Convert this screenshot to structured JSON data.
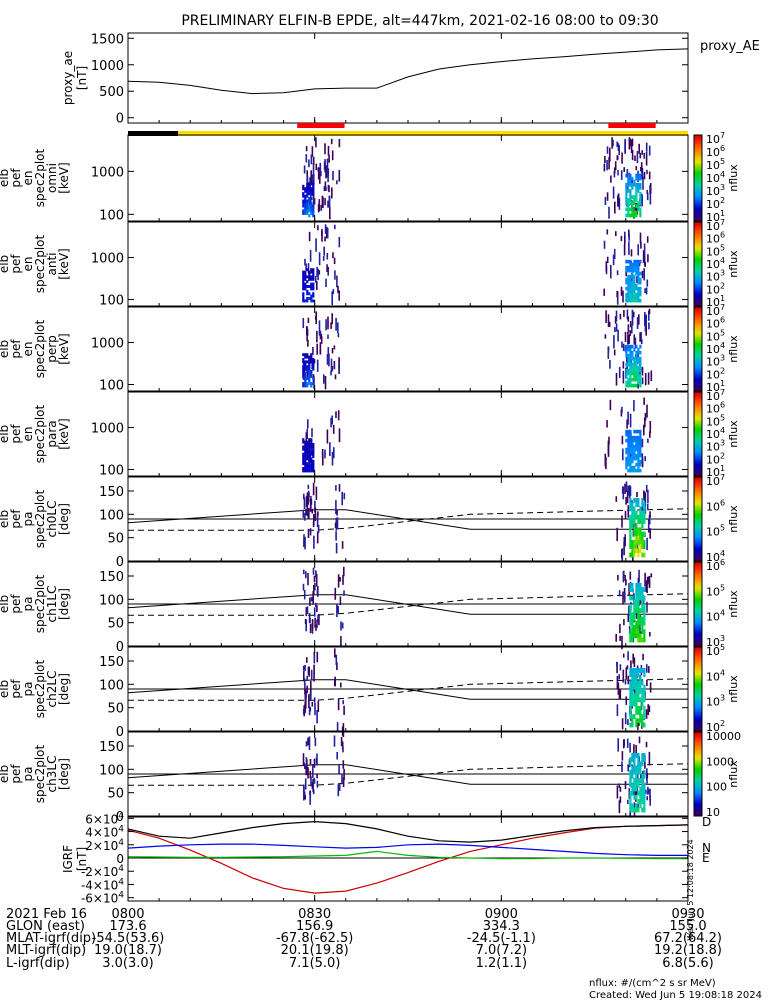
{
  "title": "PRELIMINARY ELFIN-B EPDE, alt=447km, 2021-02-16 08:00 to 09:30",
  "time_ticks": [
    "0800",
    "0830",
    "0900",
    "0930"
  ],
  "colors": {
    "science_bar": "#ff0000",
    "status_black": "#000000",
    "status_yellow": "#ffdd00"
  },
  "panels": [
    {
      "ylabel_lines": [
        "proxy_ae",
        "[nT]"
      ],
      "yticks": [
        "0",
        "500",
        "1000",
        "1500"
      ],
      "legend": "proxy_AE"
    },
    {
      "ylabel_lines": [
        "elb",
        "pef",
        "en",
        "spec2plot",
        "omni",
        "[keV]"
      ],
      "yticks": [
        "100",
        "1000"
      ],
      "cbar_ticks": [
        "10^1",
        "10^2",
        "10^3",
        "10^4",
        "10^5",
        "10^6",
        "10^7"
      ],
      "cbar_label": "nflux"
    },
    {
      "ylabel_lines": [
        "elb",
        "pef",
        "en",
        "spec2plot",
        "anti",
        "[keV]"
      ],
      "yticks": [
        "100",
        "1000"
      ],
      "cbar_ticks": [
        "10^1",
        "10^2",
        "10^3",
        "10^4",
        "10^5",
        "10^6",
        "10^7"
      ],
      "cbar_label": "nflux"
    },
    {
      "ylabel_lines": [
        "elb",
        "pef",
        "en",
        "spec2plot",
        "perp",
        "[keV]"
      ],
      "yticks": [
        "100",
        "1000"
      ],
      "cbar_ticks": [
        "10^1",
        "10^2",
        "10^3",
        "10^4",
        "10^5",
        "10^6",
        "10^7"
      ],
      "cbar_label": "nflux"
    },
    {
      "ylabel_lines": [
        "elb",
        "pef",
        "en",
        "spec2plot",
        "para",
        "[keV]"
      ],
      "yticks": [
        "100",
        "1000"
      ],
      "cbar_ticks": [
        "10^1",
        "10^2",
        "10^3",
        "10^4",
        "10^5",
        "10^6",
        "10^7"
      ],
      "cbar_label": "nflux"
    },
    {
      "ylabel_lines": [
        "elb",
        "pef",
        "pa",
        "spec2plot",
        "ch0LC",
        "[deg]"
      ],
      "yticks": [
        "0",
        "50",
        "100",
        "150"
      ],
      "cbar_ticks": [
        "10^4",
        "10^5",
        "10^6",
        "10^7"
      ],
      "cbar_label": "nflux"
    },
    {
      "ylabel_lines": [
        "elb",
        "pef",
        "pa",
        "spec2plot",
        "ch1LC",
        "[deg]"
      ],
      "yticks": [
        "0",
        "50",
        "100",
        "150"
      ],
      "cbar_ticks": [
        "10^3",
        "10^4",
        "10^5",
        "10^6"
      ],
      "cbar_label": "nflux"
    },
    {
      "ylabel_lines": [
        "elb",
        "pef",
        "pa",
        "spec2plot",
        "ch2LC",
        "[deg]"
      ],
      "yticks": [
        "0",
        "50",
        "100",
        "150"
      ],
      "cbar_ticks": [
        "10^2",
        "10^3",
        "10^4",
        "10^5"
      ],
      "cbar_label": "nflux"
    },
    {
      "ylabel_lines": [
        "elb",
        "pef",
        "pa",
        "spec2plot",
        "ch3LC",
        "[deg]"
      ],
      "yticks": [
        "0",
        "50",
        "100",
        "150"
      ],
      "cbar_ticks": [
        "10",
        "100",
        "1000",
        "10000"
      ],
      "cbar_label": "nflux"
    },
    {
      "ylabel_lines": [
        "IGRF",
        "[nT]"
      ],
      "yticks": [
        "-6×10^4",
        "-4×10^4",
        "-2×10^4",
        "0",
        "2×10^4",
        "4×10^4",
        "6×10^4"
      ],
      "legend": [
        "D",
        "N",
        "E"
      ],
      "side_stamp": "Wed Jun  5 12:08:18 2024"
    }
  ],
  "footer": {
    "labels": [
      "2021 Feb 16",
      "GLON (east)",
      "MLAT-igrf(dip)",
      "MLT-igrf(dip)",
      "L-igrf(dip)"
    ],
    "columns": [
      [
        "0800",
        "173.6",
        "-54.5(53.6)",
        "19.0(18.7)",
        "3.0(3.0)"
      ],
      [
        "0830",
        "156.9",
        "-67.8(-62.5)",
        "20.1(19.8)",
        "7.1(5.0)"
      ],
      [
        "0900",
        "334.3",
        "-24.5(-1.1)",
        "7.0(7.2)",
        "1.2(1.1)"
      ],
      [
        "0930",
        "155.0",
        "67.2(64.2)",
        "19.2(18.8)",
        "6.8(5.6)"
      ]
    ],
    "units_note": "nflux: #/(cm^2 s sr MeV)",
    "created": "Created: Wed Jun  5 19:08:18 2024"
  },
  "chart_data": [
    {
      "type": "line",
      "title": "proxy_AE",
      "ylabel": "proxy_ae [nT]",
      "ylim": [
        -100,
        1600
      ],
      "x": [
        "08:00",
        "08:05",
        "08:10",
        "08:15",
        "08:20",
        "08:25",
        "08:30",
        "08:35",
        "08:40",
        "08:45",
        "08:50",
        "08:55",
        "09:00",
        "09:05",
        "09:10",
        "09:15",
        "09:20",
        "09:25",
        "09:30"
      ],
      "values": [
        690,
        670,
        610,
        520,
        455,
        470,
        545,
        560,
        560,
        770,
        920,
        1000,
        1060,
        1110,
        1150,
        1200,
        1240,
        1280,
        1300
      ]
    },
    {
      "type": "heatmap",
      "title": "elb pef en spec2plot omni [keV]",
      "ylabel": "[keV]",
      "yscale": "log",
      "zscale": "log",
      "zlim": [
        "10^1",
        "10^7"
      ],
      "intervals": [
        [
          "08:28",
          "08:34"
        ],
        [
          "09:18",
          "09:24"
        ]
      ]
    },
    {
      "type": "heatmap",
      "title": "elb pef en spec2plot anti [keV]",
      "ylabel": "[keV]",
      "yscale": "log",
      "zscale": "log",
      "zlim": [
        "10^1",
        "10^7"
      ],
      "intervals": [
        [
          "08:28",
          "08:34"
        ],
        [
          "09:18",
          "09:24"
        ]
      ]
    },
    {
      "type": "heatmap",
      "title": "elb pef en spec2plot perp [keV]",
      "ylabel": "[keV]",
      "yscale": "log",
      "zscale": "log",
      "zlim": [
        "10^1",
        "10^7"
      ],
      "intervals": [
        [
          "08:28",
          "08:34"
        ],
        [
          "09:18",
          "09:24"
        ]
      ]
    },
    {
      "type": "heatmap",
      "title": "elb pef en spec2plot para [keV]",
      "ylabel": "[keV]",
      "yscale": "log",
      "zscale": "log",
      "zlim": [
        "10^1",
        "10^7"
      ],
      "intervals": [
        [
          "08:28",
          "08:34"
        ],
        [
          "09:18",
          "09:24"
        ]
      ]
    },
    {
      "type": "heatmap",
      "title": "elb pef pa spec2plot ch0LC [deg]",
      "ylabel": "[deg]",
      "ylim": [
        0,
        180
      ],
      "reference_lines": [
        90
      ],
      "losscone_solid_times": [
        "08:00",
        "08:30",
        "08:35",
        "08:55",
        "09:30"
      ],
      "losscone_solid_deg": [
        82,
        110,
        110,
        68,
        68
      ],
      "losscone_dashed_deg": [
        66,
        66,
        70,
        100,
        112
      ]
    },
    {
      "type": "heatmap",
      "title": "elb pef pa spec2plot ch1LC [deg]",
      "ylabel": "[deg]",
      "ylim": [
        0,
        180
      ],
      "reference_lines": [
        90
      ],
      "losscone_solid_deg": [
        82,
        110,
        110,
        68,
        68
      ],
      "losscone_dashed_deg": [
        66,
        66,
        70,
        100,
        112
      ]
    },
    {
      "type": "heatmap",
      "title": "elb pef pa spec2plot ch2LC [deg]",
      "ylabel": "[deg]",
      "ylim": [
        0,
        180
      ],
      "reference_lines": [
        90
      ],
      "losscone_solid_deg": [
        82,
        110,
        110,
        68,
        68
      ],
      "losscone_dashed_deg": [
        66,
        66,
        70,
        100,
        112
      ]
    },
    {
      "type": "heatmap",
      "title": "elb pef pa spec2plot ch3LC [deg]",
      "ylabel": "[deg]",
      "ylim": [
        0,
        180
      ],
      "reference_lines": [
        90
      ],
      "losscone_solid_deg": [
        82,
        110,
        110,
        68,
        68
      ],
      "losscone_dashed_deg": [
        66,
        66,
        70,
        100,
        112
      ]
    },
    {
      "type": "line",
      "title": "IGRF",
      "ylabel": "IGRF [nT]",
      "ylim": [
        -65000,
        62000
      ],
      "x": [
        "08:00",
        "08:05",
        "08:10",
        "08:15",
        "08:20",
        "08:25",
        "08:30",
        "08:35",
        "08:40",
        "08:45",
        "08:50",
        "08:55",
        "09:00",
        "09:05",
        "09:10",
        "09:15",
        "09:20",
        "09:25",
        "09:30"
      ],
      "series": [
        {
          "name": "D",
          "color": "#cc0000",
          "values": [
            42000,
            30000,
            12000,
            -8000,
            -30000,
            -46000,
            -53000,
            -50000,
            -38000,
            -22000,
            -5000,
            10000,
            20000,
            30000,
            38000,
            45000,
            48000,
            49000,
            50000
          ]
        },
        {
          "name": "N",
          "color": "#0000ee",
          "values": [
            15000,
            18000,
            20000,
            21000,
            21000,
            19000,
            17000,
            15000,
            16000,
            20000,
            21000,
            19000,
            16000,
            13000,
            10000,
            7000,
            5000,
            4000,
            4000
          ]
        },
        {
          "name": "E",
          "color": "#00bb00",
          "values": [
            2000,
            1500,
            1000,
            1000,
            1500,
            2000,
            3000,
            4000,
            10000,
            4000,
            1000,
            0,
            -1000,
            -1000,
            0,
            0,
            -500,
            -1000,
            -1000
          ]
        },
        {
          "name": "",
          "color": "#000000",
          "values": [
            44000,
            33000,
            30000,
            38000,
            46000,
            52000,
            55000,
            52000,
            44000,
            33000,
            26000,
            24000,
            27000,
            34000,
            41000,
            46000,
            48000,
            49000,
            50000
          ]
        }
      ]
    }
  ]
}
